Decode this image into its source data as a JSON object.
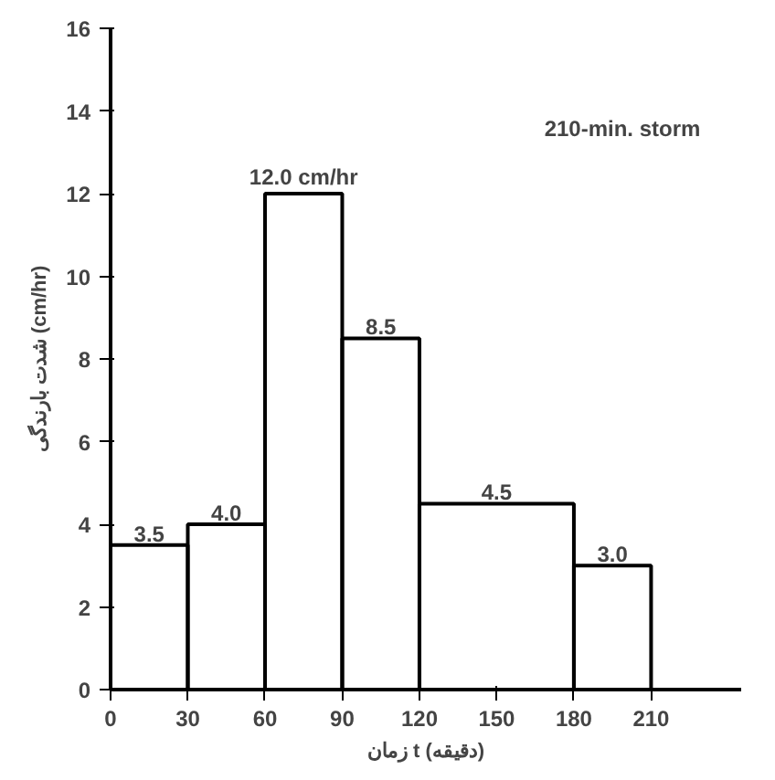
{
  "chart_data": {
    "type": "histogram",
    "xlabel": "زمان t (دقیقه)",
    "ylabel": "شدت بارندگی (cm/hr)",
    "bins": [
      0,
      30,
      60,
      90,
      120,
      180,
      210
    ],
    "values": [
      3.5,
      4.0,
      12.0,
      8.5,
      4.5,
      3.0
    ],
    "value_labels": [
      "3.5",
      "4.0",
      "12.0 cm/hr",
      "8.5",
      "4.5",
      "3.0"
    ],
    "color": "#000000",
    "annotations": [
      "210-min. storm"
    ],
    "xlim": [
      0,
      245
    ],
    "xticks": [
      0,
      30,
      60,
      90,
      120,
      150,
      180,
      210
    ],
    "ylim": [
      0,
      16
    ],
    "yticks": [
      0,
      2,
      4,
      6,
      8,
      10,
      12,
      14,
      16
    ],
    "grid": false
  }
}
